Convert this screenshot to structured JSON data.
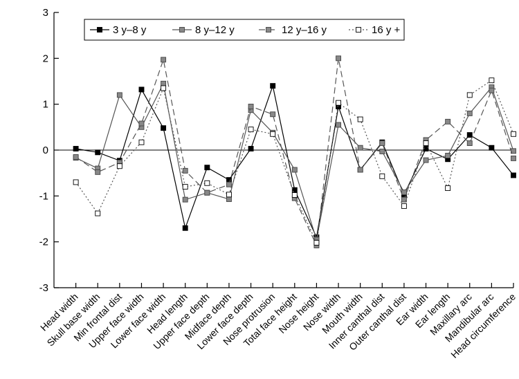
{
  "chart_data": {
    "type": "line",
    "categories": [
      "Head width",
      "Skull base width",
      "Min frontal dist",
      "Upper face width",
      "Lower face width",
      "Head length",
      "Upper face depth",
      "Midface depth",
      "Lower face depth",
      "Nose protrusion",
      "Total face height",
      "Nose height",
      "Nose width",
      "Mouth width",
      "Inner canthal dist",
      "Outer canthal dist",
      "Ear width",
      "Ear length",
      "Maxillary arc",
      "Mandibular arc",
      "Head circumference"
    ],
    "ylim": [
      -3,
      3
    ],
    "yticks": [
      -3,
      -2,
      -1,
      0,
      1,
      2,
      3
    ],
    "reference_line": 0,
    "grid": false,
    "legend_position": "top",
    "series": [
      {
        "name": "3 y–8 y",
        "color": "#000000",
        "marker": "filled-square",
        "dash": "solid",
        "values": [
          0.03,
          -0.05,
          -0.23,
          1.32,
          0.48,
          -1.7,
          -0.38,
          -0.65,
          0.03,
          1.4,
          -0.87,
          -1.9,
          0.95,
          -0.43,
          0.17,
          -0.97,
          0.03,
          -0.2,
          0.33,
          0.05,
          -0.55
        ]
      },
      {
        "name": "8 y–12 y",
        "color": "#555555",
        "marker": "gray-square",
        "dash": "solid",
        "values": [
          -0.17,
          -0.4,
          1.2,
          0.5,
          1.45,
          -1.08,
          -0.93,
          -1.07,
          0.87,
          0.38,
          -0.43,
          -1.95,
          0.55,
          0.05,
          -0.03,
          -0.92,
          -0.22,
          -0.12,
          0.8,
          1.37,
          -0.02
        ]
      },
      {
        "name": "12 y–16 y",
        "color": "#555555",
        "marker": "gray-square",
        "dash": "dashed",
        "values": [
          -0.15,
          -0.48,
          -0.27,
          0.58,
          1.97,
          -0.45,
          -0.93,
          -0.75,
          0.95,
          0.78,
          -1.05,
          -2.08,
          2.0,
          -0.43,
          0.15,
          -1.08,
          0.22,
          0.62,
          0.15,
          1.3,
          -0.18
        ]
      },
      {
        "name": "16 y +",
        "color": "#555555",
        "marker": "open-square",
        "dash": "dotted",
        "values": [
          -0.7,
          -1.38,
          -0.35,
          0.17,
          1.35,
          -0.8,
          -0.72,
          -0.97,
          0.45,
          0.35,
          -0.98,
          -2.02,
          1.03,
          0.67,
          -0.57,
          -1.22,
          0.15,
          -0.83,
          1.2,
          1.52,
          0.35
        ]
      }
    ]
  }
}
